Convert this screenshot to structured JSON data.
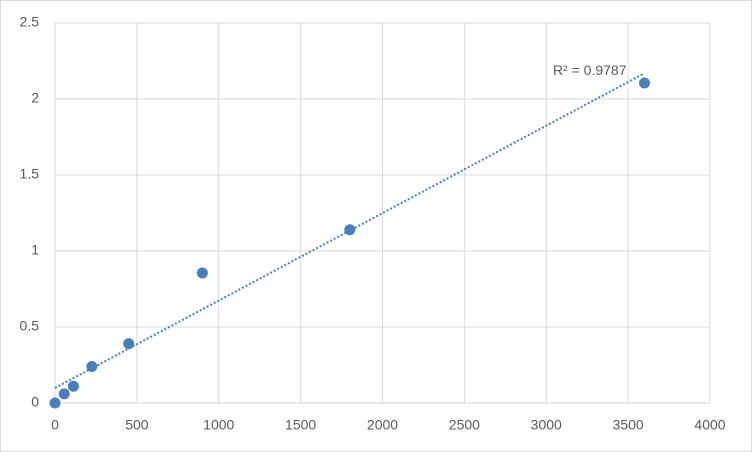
{
  "chart_data": {
    "type": "scatter",
    "x": [
      0,
      56.25,
      112.5,
      225,
      450,
      900,
      1800,
      3600
    ],
    "values": [
      0,
      0.06,
      0.11,
      0.24,
      0.39,
      0.855,
      1.14,
      2.105
    ],
    "color": "#4a7ebb",
    "xlim": [
      0,
      4000
    ],
    "xticks": [
      0,
      500,
      1000,
      1500,
      2000,
      2500,
      3000,
      3500,
      4000
    ],
    "ylim": [
      0,
      2.5
    ],
    "yticks": [
      0,
      0.5,
      1,
      1.5,
      2,
      2.5
    ],
    "grid": true,
    "trendline": "linear",
    "annotation": "R² = 0.9787"
  }
}
